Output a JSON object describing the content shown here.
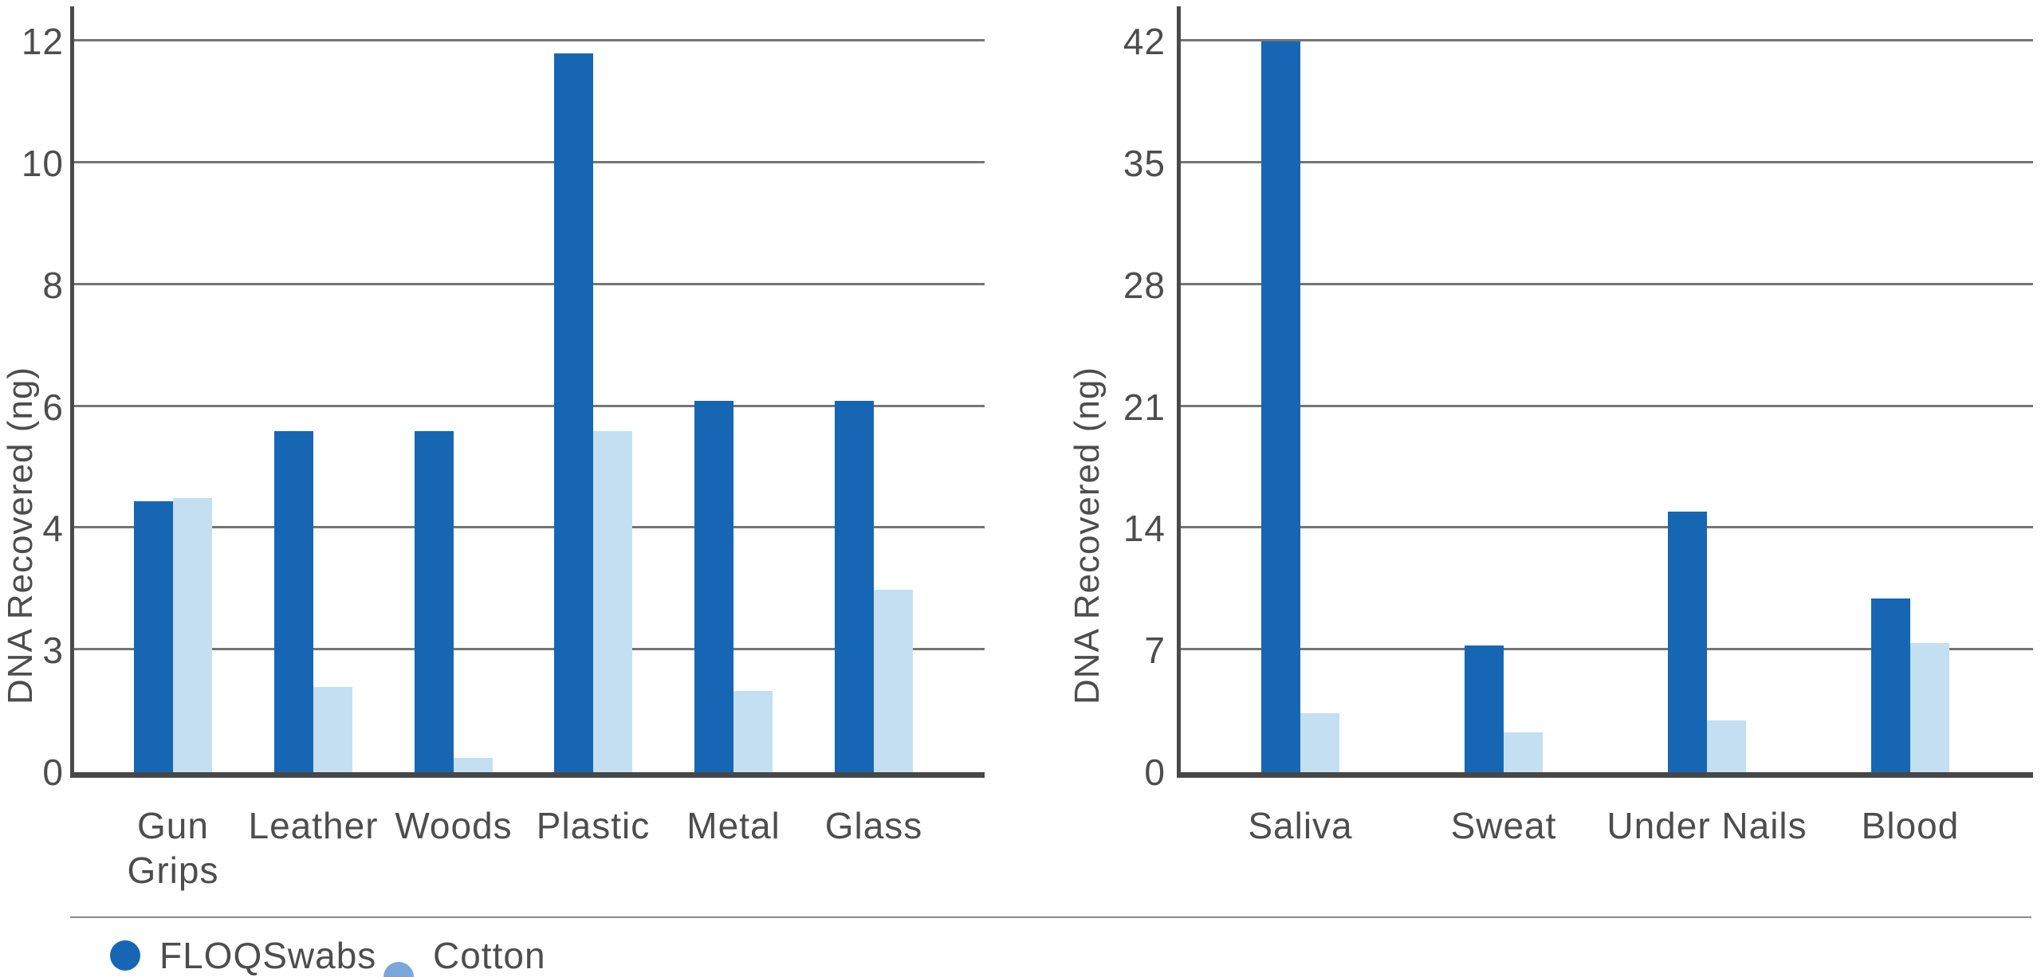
{
  "chart_data": [
    {
      "type": "bar",
      "title": "",
      "xlabel": "",
      "ylabel": "DNA Recovered (ng)",
      "yticks": [
        0,
        3,
        4,
        6,
        8,
        10,
        12
      ],
      "axis_note": "gridlines are evenly spaced even though tick values 0,3,4,6,8,10,12 are non-linear",
      "grid": true,
      "legend_position": "bottom",
      "categories": [
        "Gun\nGrips",
        "Leather",
        "Woods",
        "Plastic",
        "Metal",
        "Glass"
      ],
      "series": [
        {
          "name": "FLOQSwabs",
          "color": "#1766b4",
          "values": [
            4.45,
            5.6,
            5.6,
            11.8,
            6.1,
            6.1
          ]
        },
        {
          "name": "Cotton Swab",
          "color": "#c4dff2",
          "values": [
            4.5,
            2.1,
            0.35,
            5.6,
            2.0,
            3.5
          ]
        }
      ]
    },
    {
      "type": "bar",
      "title": "",
      "xlabel": "",
      "ylabel": "DNA Recovered (ng)",
      "yticks": [
        0,
        7,
        14,
        21,
        28,
        35,
        42
      ],
      "axis_note": "linear axis, 0 to 42 in steps of 7",
      "grid": true,
      "legend_position": "bottom",
      "categories": [
        "Saliva",
        "Sweat",
        "Under Nails",
        "Blood"
      ],
      "series": [
        {
          "name": "FLOQSwabs",
          "color": "#1766b4",
          "values": [
            42,
            7.3,
            15,
            10
          ]
        },
        {
          "name": "Cotton Swab",
          "color": "#c4dff2",
          "values": [
            3.4,
            2.3,
            3.0,
            7.4
          ]
        }
      ]
    }
  ],
  "legend": {
    "items": [
      {
        "label": "FLOQSwabs",
        "color": "#1766b4"
      },
      {
        "label": "Cotton Swab",
        "color": "#7aa6da"
      }
    ]
  },
  "colors": {
    "floqswabs_bar": "#1766b4",
    "cotton_bar": "#c4dff2",
    "cotton_legend_dot": "#7aa6da",
    "text": "#4d4d4d",
    "gridline": "#5d5d5d",
    "axis": "#474747"
  }
}
